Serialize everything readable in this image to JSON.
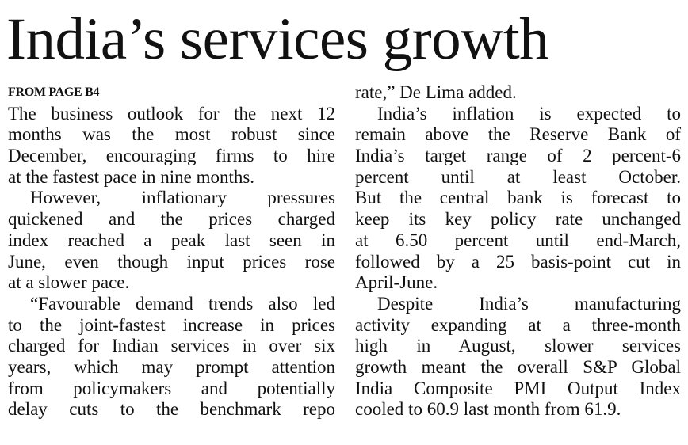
{
  "headline": "India’s services growth",
  "columns": [
    [
      {
        "text": "FROM PAGE B4",
        "kicker": true
      },
      {
        "text": "The business outlook for the next 12"
      },
      {
        "text": "months was the most robust since"
      },
      {
        "text": "December, encouraging firms to hire"
      },
      {
        "text": "at the fastest pace in nine months.",
        "last": true
      },
      {
        "text": "However, inflationary pressures",
        "indent": true
      },
      {
        "text": "quickened and the prices charged"
      },
      {
        "text": "index reached a peak last seen in"
      },
      {
        "text": "June, even though input prices rose"
      },
      {
        "text": "at a slower pace.",
        "last": true
      },
      {
        "text": "“Favourable demand trends also led",
        "indent": true
      },
      {
        "text": "to the joint-fastest increase in prices"
      },
      {
        "text": "charged for Indian services in over six"
      },
      {
        "text": "years, which may prompt attention"
      },
      {
        "text": "from policymakers and potentially"
      },
      {
        "text": "delay cuts to the benchmark repo"
      }
    ],
    [
      {
        "text": "rate,” De Lima added.",
        "last": true
      },
      {
        "text": "India’s inflation is expected to",
        "indent": true
      },
      {
        "text": "remain above the Reserve Bank of"
      },
      {
        "text": "India’s target range of 2 percent-6"
      },
      {
        "text": "percent until at least October."
      },
      {
        "text": "But the central bank is forecast to"
      },
      {
        "text": "keep its key policy rate unchanged"
      },
      {
        "text": "at 6.50 percent until end-March,"
      },
      {
        "text": "followed by a 25 basis-point cut in"
      },
      {
        "text": "April-June.",
        "last": true
      },
      {
        "text": "Despite India’s manufacturing",
        "indent": true
      },
      {
        "text": "activity expanding at a three-month"
      },
      {
        "text": "high in August, slower services"
      },
      {
        "text": "growth meant the overall S&P Global"
      },
      {
        "text": "India Composite PMI Output Index"
      },
      {
        "text": "cooled to 60.9 last month from 61.9.",
        "last": true
      }
    ]
  ]
}
